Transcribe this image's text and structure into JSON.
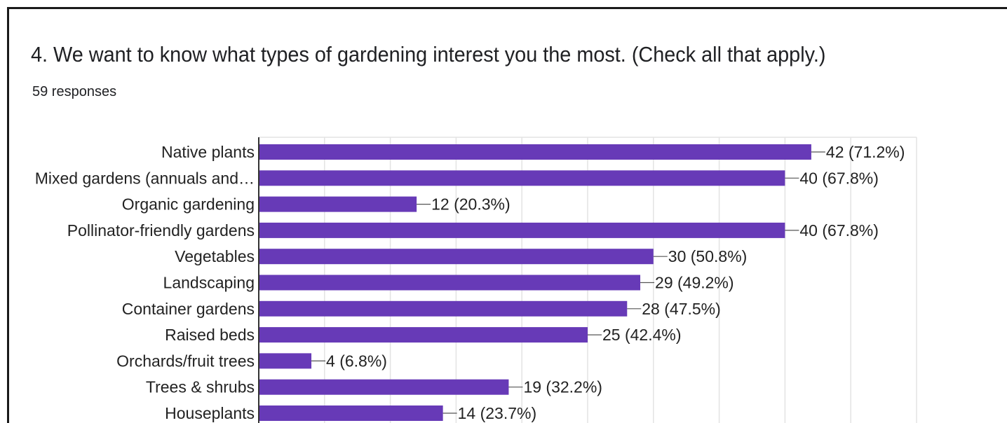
{
  "question": {
    "title": "4. We want to know what types of gardening interest you the most. (Check all that apply.)",
    "responses": "59 responses"
  },
  "colors": {
    "bar": "#673ab7",
    "grid": "#e3e3e3",
    "axis": "#333333",
    "leader": "#555555"
  },
  "chart_data": {
    "type": "bar",
    "orientation": "horizontal",
    "title": "4. We want to know what types of gardening interest you the most. (Check all that apply.)",
    "subtitle": "59 responses",
    "categories": [
      "Native plants",
      "Mixed gardens (annuals and…",
      "Organic gardening",
      "Pollinator-friendly gardens",
      "Vegetables",
      "Landscaping",
      "Container gardens",
      "Raised beds",
      "Orchards/fruit trees",
      "Trees & shrubs",
      "Houseplants"
    ],
    "values": [
      42,
      40,
      12,
      40,
      30,
      29,
      28,
      25,
      4,
      19,
      14
    ],
    "data_labels": [
      "42 (71.2%)",
      "40 (67.8%)",
      "12 (20.3%)",
      "40 (67.8%)",
      "30 (50.8%)",
      "29 (49.2%)",
      "28 (47.5%)",
      "25 (42.4%)",
      "4 (6.8%)",
      "19 (32.2%)",
      "14 (23.7%)"
    ],
    "xlim": [
      0,
      50
    ],
    "grid": true,
    "legend": "none"
  }
}
